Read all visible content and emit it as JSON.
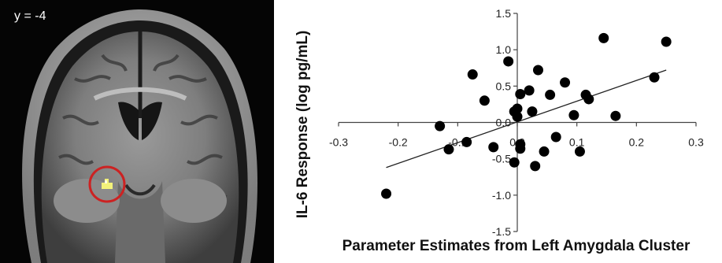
{
  "mri": {
    "slice_label": "y = -4",
    "highlight_color": "#cc2222",
    "blob_color": "#f3f27a"
  },
  "chart_data": {
    "type": "scatter",
    "xlabel": "Parameter Estimates from Left Amygdala Cluster",
    "ylabel": "IL-6 Response (log pg/mL)",
    "xlim": [
      -0.3,
      0.3
    ],
    "ylim": [
      -1.5,
      1.5
    ],
    "xticks": [
      "-0.3",
      "-0.2",
      "-0.1",
      "0.0",
      "0.1",
      "0.2",
      "0.3"
    ],
    "yticks": [
      "1.5",
      "1.0",
      "0.5",
      "0.0",
      "-0.5",
      "-1.0",
      "-1.5"
    ],
    "xtick_values": [
      -0.3,
      -0.2,
      -0.1,
      0.0,
      0.1,
      0.2,
      0.3
    ],
    "ytick_values": [
      1.5,
      1.0,
      0.5,
      0.0,
      -0.5,
      -1.0,
      -1.5
    ],
    "x": [
      -0.22,
      -0.13,
      -0.115,
      -0.075,
      -0.085,
      -0.055,
      -0.04,
      -0.015,
      -0.005,
      0.0,
      -0.005,
      0.0,
      0.005,
      0.005,
      0.005,
      0.02,
      0.025,
      0.03,
      0.035,
      0.045,
      0.055,
      0.065,
      0.08,
      0.095,
      0.105,
      0.115,
      0.12,
      0.145,
      0.165,
      0.23,
      0.25
    ],
    "y": [
      -0.98,
      -0.05,
      -0.37,
      0.66,
      -0.27,
      0.3,
      -0.34,
      0.84,
      0.15,
      0.08,
      -0.55,
      0.19,
      -0.36,
      -0.3,
      0.39,
      0.44,
      0.15,
      -0.6,
      0.72,
      -0.4,
      0.38,
      -0.2,
      0.55,
      0.1,
      -0.4,
      0.38,
      0.32,
      1.16,
      0.09,
      0.62,
      1.11
    ],
    "trendline": {
      "x": [
        -0.22,
        0.25
      ],
      "y": [
        -0.62,
        0.72
      ]
    },
    "marker_color": "#000000",
    "line_color": "#222222"
  }
}
